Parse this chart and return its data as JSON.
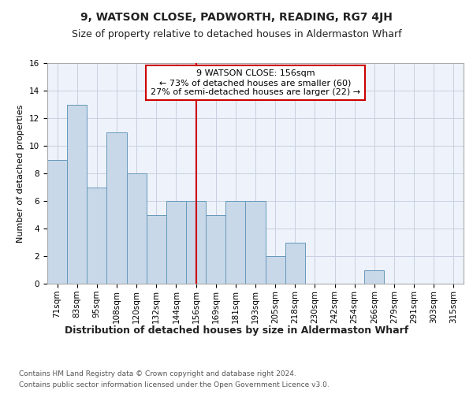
{
  "title": "9, WATSON CLOSE, PADWORTH, READING, RG7 4JH",
  "subtitle": "Size of property relative to detached houses in Aldermaston Wharf",
  "xlabel": "Distribution of detached houses by size in Aldermaston Wharf",
  "ylabel": "Number of detached properties",
  "bins": [
    "71sqm",
    "83sqm",
    "95sqm",
    "108sqm",
    "120sqm",
    "132sqm",
    "144sqm",
    "156sqm",
    "169sqm",
    "181sqm",
    "193sqm",
    "205sqm",
    "218sqm",
    "230sqm",
    "242sqm",
    "254sqm",
    "266sqm",
    "279sqm",
    "291sqm",
    "303sqm",
    "315sqm"
  ],
  "values": [
    9,
    13,
    7,
    11,
    8,
    5,
    6,
    6,
    5,
    6,
    6,
    2,
    3,
    0,
    0,
    0,
    1,
    0,
    0,
    0,
    0
  ],
  "bar_color": "#c8d8e8",
  "bar_edge_color": "#6699bb",
  "marker_bin_index": 7,
  "marker_color": "#cc0000",
  "annotation_line1": "9 WATSON CLOSE: 156sqm",
  "annotation_line2": "← 73% of detached houses are smaller (60)",
  "annotation_line3": "27% of semi-detached houses are larger (22) →",
  "annotation_box_color": "#ffffff",
  "annotation_box_edge_color": "#cc0000",
  "ylim": [
    0,
    16
  ],
  "yticks": [
    0,
    2,
    4,
    6,
    8,
    10,
    12,
    14,
    16
  ],
  "footer1": "Contains HM Land Registry data © Crown copyright and database right 2024.",
  "footer2": "Contains public sector information licensed under the Open Government Licence v3.0.",
  "background_color": "#eef2fa",
  "grid_color": "#c8d0e0",
  "title_fontsize": 10,
  "subtitle_fontsize": 9,
  "xlabel_fontsize": 9,
  "ylabel_fontsize": 8,
  "tick_fontsize": 7.5,
  "annotation_fontsize": 8,
  "footer_fontsize": 6.5
}
